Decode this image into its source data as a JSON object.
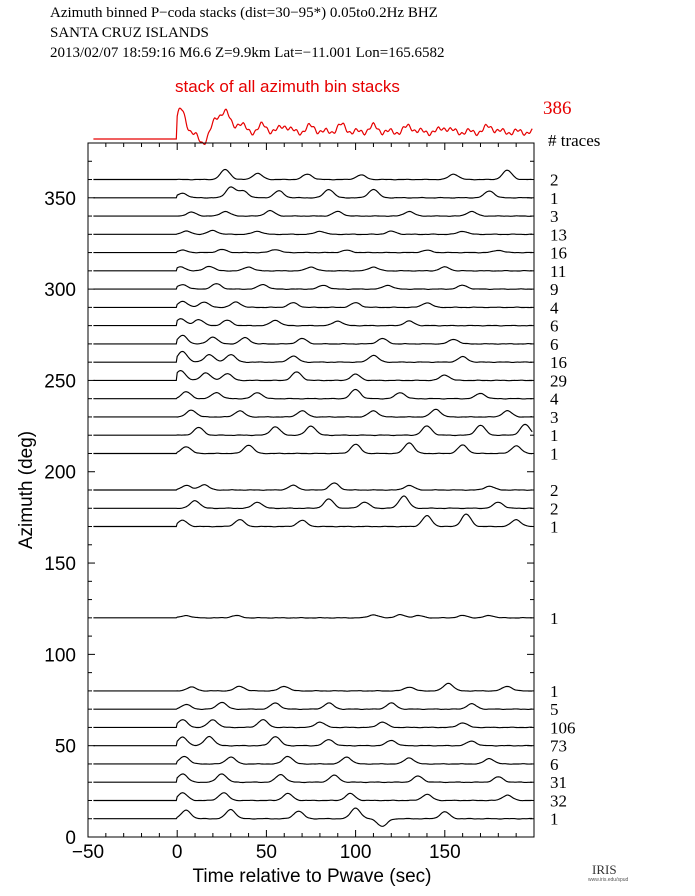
{
  "header": {
    "line1": "Azimuth binned P−coda stacks (dist=30−95*)  0.05to0.2Hz  BHZ",
    "line2": "SANTA CRUZ ISLANDS",
    "line3": "2013/02/07   18:59:16   M6.6   Z=9.9km  Lat=−11.001  Lon=165.6582"
  },
  "logo": {
    "text": "IRIS",
    "url_text": "www.iris.edu/spud"
  },
  "colors": {
    "stack": "#e60000",
    "trace": "#000000"
  },
  "chart_data": {
    "type": "line",
    "xlabel": "Time relative to Pwave (sec)",
    "ylabel": "Azimuth (deg)",
    "xlim": [
      -50,
      200
    ],
    "ylim": [
      0,
      380
    ],
    "xticks": [
      -50,
      0,
      50,
      100,
      150
    ],
    "yticks": [
      0,
      50,
      100,
      150,
      200,
      250,
      300,
      350
    ],
    "grid": false,
    "summary_stack": {
      "label": "stack of all azimuth bin stacks",
      "count": "386",
      "peaks": [
        {
          "t": 2,
          "a": 1.0
        },
        {
          "t": 14,
          "a": -0.5
        },
        {
          "t": 22,
          "a": 0.5
        },
        {
          "t": 27,
          "a": 0.9
        },
        {
          "t": 35,
          "a": 0.4
        },
        {
          "t": 48,
          "a": 0.3
        },
        {
          "t": 60,
          "a": 0.3
        },
        {
          "t": 75,
          "a": 0.25
        },
        {
          "t": 92,
          "a": 0.3
        },
        {
          "t": 110,
          "a": 0.25
        },
        {
          "t": 130,
          "a": 0.25
        },
        {
          "t": 150,
          "a": 0.2
        },
        {
          "t": 175,
          "a": 0.25
        }
      ]
    },
    "count_header": "# traces",
    "series": [
      {
        "azimuth": 360,
        "traces": "2",
        "peaks": [
          {
            "t": 27,
            "a": 13
          },
          {
            "t": 45,
            "a": 8
          },
          {
            "t": 73,
            "a": 7
          },
          {
            "t": 103,
            "a": 6
          },
          {
            "t": 155,
            "a": 7
          },
          {
            "t": 185,
            "a": 12
          }
        ]
      },
      {
        "azimuth": 350,
        "traces": "1",
        "peaks": [
          {
            "t": 3,
            "a": 6
          },
          {
            "t": 30,
            "a": 14
          },
          {
            "t": 37,
            "a": 9
          },
          {
            "t": 57,
            "a": 9
          },
          {
            "t": 85,
            "a": 11
          },
          {
            "t": 110,
            "a": 11
          },
          {
            "t": 175,
            "a": 9
          }
        ]
      },
      {
        "azimuth": 340,
        "traces": "3",
        "peaks": [
          {
            "t": 8,
            "a": 5
          },
          {
            "t": 27,
            "a": 6
          },
          {
            "t": 52,
            "a": 7
          },
          {
            "t": 90,
            "a": 6
          },
          {
            "t": 130,
            "a": 6
          },
          {
            "t": 165,
            "a": 6
          }
        ]
      },
      {
        "azimuth": 330,
        "traces": "13",
        "peaks": [
          {
            "t": 5,
            "a": 4
          },
          {
            "t": 20,
            "a": 5
          },
          {
            "t": 45,
            "a": 4
          },
          {
            "t": 80,
            "a": 4
          },
          {
            "t": 120,
            "a": 4
          },
          {
            "t": 160,
            "a": 4
          }
        ]
      },
      {
        "azimuth": 320,
        "traces": "16",
        "peaks": [
          {
            "t": 3,
            "a": 3
          },
          {
            "t": 25,
            "a": 4
          },
          {
            "t": 55,
            "a": 4
          },
          {
            "t": 95,
            "a": 3
          },
          {
            "t": 140,
            "a": 3
          },
          {
            "t": 180,
            "a": 3
          }
        ]
      },
      {
        "azimuth": 310,
        "traces": "11",
        "peaks": [
          {
            "t": 2,
            "a": 5
          },
          {
            "t": 18,
            "a": 6
          },
          {
            "t": 40,
            "a": 5
          },
          {
            "t": 75,
            "a": 5
          },
          {
            "t": 110,
            "a": 5
          },
          {
            "t": 150,
            "a": 5
          }
        ]
      },
      {
        "azimuth": 300,
        "traces": "9",
        "peaks": [
          {
            "t": 3,
            "a": 6
          },
          {
            "t": 22,
            "a": 7
          },
          {
            "t": 48,
            "a": 6
          },
          {
            "t": 82,
            "a": 5
          },
          {
            "t": 118,
            "a": 5
          },
          {
            "t": 160,
            "a": 5
          }
        ]
      },
      {
        "azimuth": 290,
        "traces": "4",
        "peaks": [
          {
            "t": 3,
            "a": 8
          },
          {
            "t": 15,
            "a": 7
          },
          {
            "t": 33,
            "a": 7
          },
          {
            "t": 65,
            "a": 6
          },
          {
            "t": 100,
            "a": 6
          },
          {
            "t": 140,
            "a": 6
          }
        ]
      },
      {
        "azimuth": 280,
        "traces": "6",
        "peaks": [
          {
            "t": 2,
            "a": 9
          },
          {
            "t": 12,
            "a": 8
          },
          {
            "t": 28,
            "a": 7
          },
          {
            "t": 55,
            "a": 7
          },
          {
            "t": 90,
            "a": 6
          },
          {
            "t": 130,
            "a": 6
          }
        ]
      },
      {
        "azimuth": 270,
        "traces": "6",
        "peaks": [
          {
            "t": 3,
            "a": 11
          },
          {
            "t": 20,
            "a": 9
          },
          {
            "t": 38,
            "a": 8
          },
          {
            "t": 70,
            "a": 7
          },
          {
            "t": 115,
            "a": 7
          },
          {
            "t": 155,
            "a": 6
          }
        ]
      },
      {
        "azimuth": 260,
        "traces": "16",
        "peaks": [
          {
            "t": 3,
            "a": 14
          },
          {
            "t": 18,
            "a": 10
          },
          {
            "t": 30,
            "a": 10
          },
          {
            "t": 65,
            "a": 8
          },
          {
            "t": 110,
            "a": 9
          },
          {
            "t": 160,
            "a": 7
          }
        ]
      },
      {
        "azimuth": 250,
        "traces": "29",
        "peaks": [
          {
            "t": 2,
            "a": 13
          },
          {
            "t": 16,
            "a": 10
          },
          {
            "t": 28,
            "a": 9
          },
          {
            "t": 67,
            "a": 11
          },
          {
            "t": 100,
            "a": 8
          },
          {
            "t": 150,
            "a": 7
          }
        ]
      },
      {
        "azimuth": 240,
        "traces": "4",
        "peaks": [
          {
            "t": 5,
            "a": 9
          },
          {
            "t": 22,
            "a": 8
          },
          {
            "t": 45,
            "a": 8
          },
          {
            "t": 100,
            "a": 12
          },
          {
            "t": 125,
            "a": 8
          },
          {
            "t": 170,
            "a": 7
          }
        ]
      },
      {
        "azimuth": 230,
        "traces": "3",
        "peaks": [
          {
            "t": 8,
            "a": 9
          },
          {
            "t": 35,
            "a": 8
          },
          {
            "t": 70,
            "a": 8
          },
          {
            "t": 110,
            "a": 8
          },
          {
            "t": 145,
            "a": 10
          },
          {
            "t": 185,
            "a": 8
          }
        ]
      },
      {
        "azimuth": 220,
        "traces": "1",
        "peaks": [
          {
            "t": 12,
            "a": 10
          },
          {
            "t": 55,
            "a": 11
          },
          {
            "t": 75,
            "a": 12
          },
          {
            "t": 140,
            "a": 12
          },
          {
            "t": 170,
            "a": 13
          },
          {
            "t": 195,
            "a": 14
          }
        ]
      },
      {
        "azimuth": 210,
        "traces": "1",
        "peaks": [
          {
            "t": 5,
            "a": 9
          },
          {
            "t": 40,
            "a": 11
          },
          {
            "t": 100,
            "a": 12
          },
          {
            "t": 130,
            "a": 14
          },
          {
            "t": 160,
            "a": 11
          },
          {
            "t": 190,
            "a": 10
          }
        ]
      },
      {
        "azimuth": 190,
        "traces": "2",
        "peaks": [
          {
            "t": 5,
            "a": 6
          },
          {
            "t": 15,
            "a": 7
          },
          {
            "t": 65,
            "a": 6
          },
          {
            "t": 88,
            "a": 9
          },
          {
            "t": 130,
            "a": 6
          },
          {
            "t": 175,
            "a": 5
          }
        ]
      },
      {
        "azimuth": 180,
        "traces": "2",
        "peaks": [
          {
            "t": 10,
            "a": 10
          },
          {
            "t": 45,
            "a": 8
          },
          {
            "t": 85,
            "a": 12
          },
          {
            "t": 105,
            "a": 8
          },
          {
            "t": 127,
            "a": 16
          },
          {
            "t": 180,
            "a": 8
          }
        ]
      },
      {
        "azimuth": 170,
        "traces": "1",
        "peaks": [
          {
            "t": 3,
            "a": 8
          },
          {
            "t": 35,
            "a": 9
          },
          {
            "t": 70,
            "a": 8
          },
          {
            "t": 140,
            "a": 14
          },
          {
            "t": 162,
            "a": 16
          },
          {
            "t": 190,
            "a": 9
          }
        ]
      },
      {
        "azimuth": 120,
        "traces": "1",
        "peaks": [
          {
            "t": 5,
            "a": 3
          },
          {
            "t": 33,
            "a": 3
          },
          {
            "t": 110,
            "a": 4
          },
          {
            "t": 125,
            "a": 4
          },
          {
            "t": 135,
            "a": 3
          },
          {
            "t": 160,
            "a": 3
          },
          {
            "t": 175,
            "a": 3
          }
        ]
      },
      {
        "azimuth": 80,
        "traces": "1",
        "peaks": [
          {
            "t": 8,
            "a": 5
          },
          {
            "t": 35,
            "a": 6
          },
          {
            "t": 60,
            "a": 6
          },
          {
            "t": 130,
            "a": 5
          },
          {
            "t": 152,
            "a": 10
          },
          {
            "t": 185,
            "a": 6
          }
        ]
      },
      {
        "azimuth": 70,
        "traces": "5",
        "peaks": [
          {
            "t": 5,
            "a": 6
          },
          {
            "t": 25,
            "a": 9
          },
          {
            "t": 55,
            "a": 8
          },
          {
            "t": 85,
            "a": 8
          },
          {
            "t": 120,
            "a": 8
          },
          {
            "t": 165,
            "a": 7
          }
        ]
      },
      {
        "azimuth": 60,
        "traces": "106",
        "peaks": [
          {
            "t": 3,
            "a": 10
          },
          {
            "t": 20,
            "a": 10
          },
          {
            "t": 48,
            "a": 10
          },
          {
            "t": 80,
            "a": 7
          },
          {
            "t": 115,
            "a": 7
          },
          {
            "t": 160,
            "a": 6
          }
        ]
      },
      {
        "azimuth": 50,
        "traces": "73",
        "peaks": [
          {
            "t": 3,
            "a": 11
          },
          {
            "t": 18,
            "a": 12
          },
          {
            "t": 55,
            "a": 12
          },
          {
            "t": 85,
            "a": 8
          },
          {
            "t": 120,
            "a": 7
          },
          {
            "t": 165,
            "a": 6
          }
        ]
      },
      {
        "azimuth": 40,
        "traces": "6",
        "peaks": [
          {
            "t": 4,
            "a": 10
          },
          {
            "t": 30,
            "a": 9
          },
          {
            "t": 62,
            "a": 10
          },
          {
            "t": 95,
            "a": 9
          },
          {
            "t": 130,
            "a": 8
          },
          {
            "t": 175,
            "a": 7
          }
        ]
      },
      {
        "azimuth": 30,
        "traces": "31",
        "peaks": [
          {
            "t": 3,
            "a": 11
          },
          {
            "t": 25,
            "a": 11
          },
          {
            "t": 58,
            "a": 10
          },
          {
            "t": 88,
            "a": 9
          },
          {
            "t": 135,
            "a": 8
          },
          {
            "t": 180,
            "a": 7
          }
        ]
      },
      {
        "azimuth": 20,
        "traces": "32",
        "peaks": [
          {
            "t": 3,
            "a": 10
          },
          {
            "t": 26,
            "a": 10
          },
          {
            "t": 62,
            "a": 9
          },
          {
            "t": 97,
            "a": 9
          },
          {
            "t": 140,
            "a": 8
          },
          {
            "t": 185,
            "a": 7
          }
        ]
      },
      {
        "azimuth": 10,
        "traces": "1",
        "peaks": [
          {
            "t": 5,
            "a": 11
          },
          {
            "t": 30,
            "a": 12
          },
          {
            "t": 68,
            "a": 10
          },
          {
            "t": 100,
            "a": 14
          },
          {
            "t": 115,
            "a": -10
          },
          {
            "t": 150,
            "a": 9
          }
        ]
      }
    ]
  }
}
